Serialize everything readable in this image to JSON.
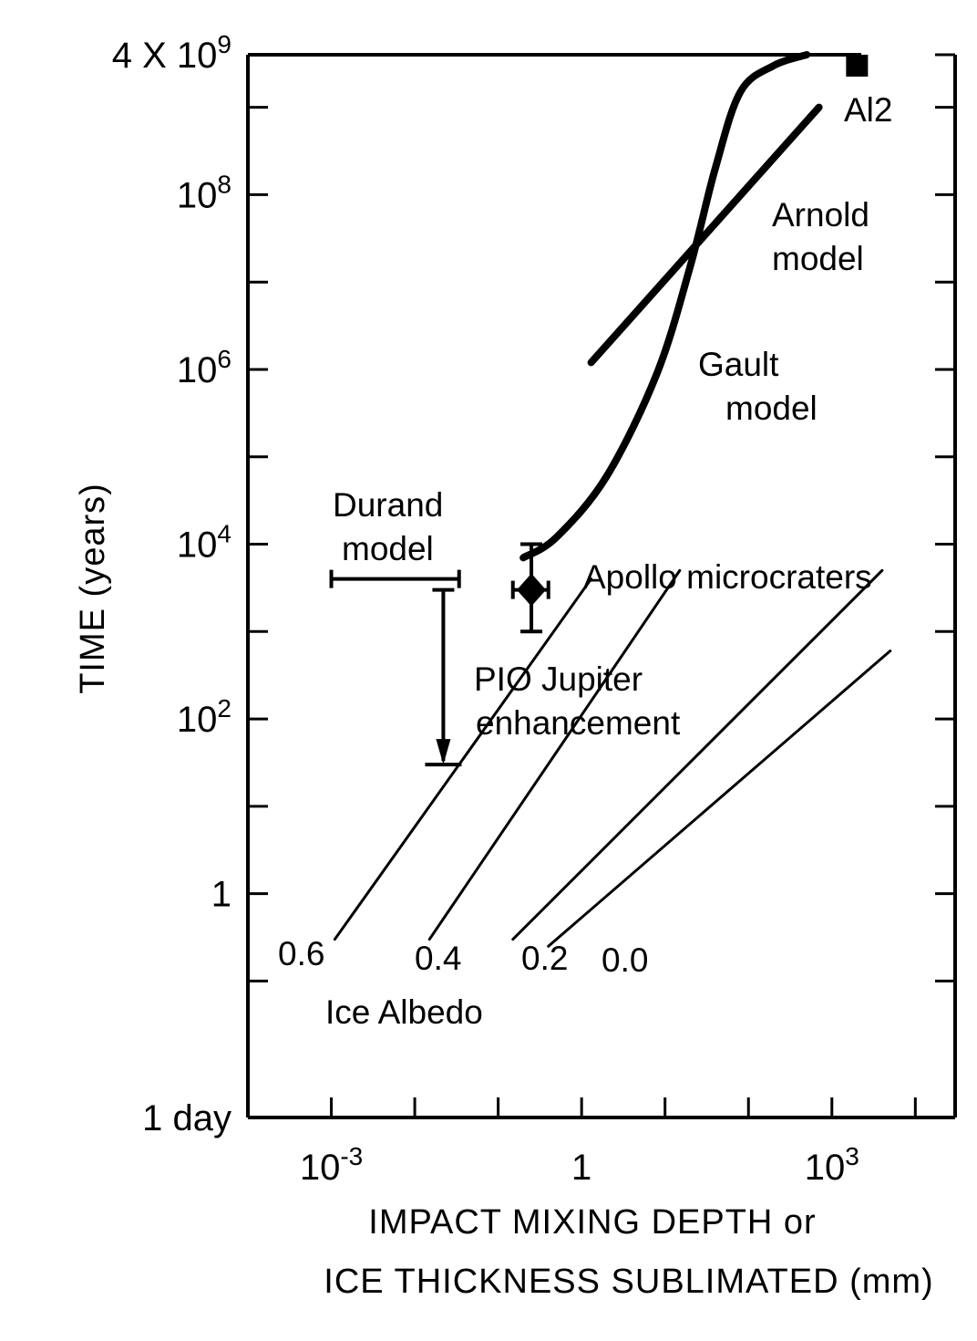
{
  "chart_data": {
    "type": "line",
    "xlabel": [
      "IMPACT MIXING DEPTH or",
      "ICE THICKNESS SUBLIMATED (mm)"
    ],
    "ylabel": "TIME (years)",
    "x_scale": "log",
    "y_scale": "log",
    "xlim": [
      0.0001,
      30000.0
    ],
    "ylim": [
      0.00274,
      4000000000.0
    ],
    "grid": false,
    "x_ticks_major": [
      {
        "value": 0.001,
        "label": "10⁻³"
      },
      {
        "value": 1,
        "label": "1"
      },
      {
        "value": 1000,
        "label": "10³"
      }
    ],
    "x_ticks_minor": [
      0.01,
      0.1,
      10,
      100,
      10000
    ],
    "y_ticks_major": [
      {
        "value": 0.00274,
        "label": "1 day"
      },
      {
        "value": 1,
        "label": "1"
      },
      {
        "value": 100,
        "label": "10²"
      },
      {
        "value": 10000,
        "label": "10⁴"
      },
      {
        "value": 1000000,
        "label": "10⁶"
      },
      {
        "value": 100000000,
        "label": "10⁸"
      },
      {
        "value": 4000000000,
        "label": "4 X 10⁹"
      }
    ],
    "y_ticks_minor": [
      0.1,
      10,
      1000,
      100000,
      10000000,
      1000000000
    ],
    "series": [
      {
        "name": "Gault model",
        "style": "thick",
        "x": [
          0.2,
          0.5,
          2,
          8,
          20,
          40,
          80,
          200,
          500
        ],
        "y": [
          7000,
          12000,
          60000,
          900000,
          15000000,
          200000000,
          1500000000,
          3000000000,
          4000000000
        ]
      },
      {
        "name": "Arnold model",
        "style": "thick",
        "x": [
          1.3,
          700
        ],
        "y": [
          1200000,
          1000000000
        ]
      },
      {
        "name": "0.6",
        "style": "thin",
        "x": [
          0.0011,
          1.3
        ],
        "y": [
          0.3,
          4000
        ]
      },
      {
        "name": "0.4",
        "style": "thin",
        "x": [
          0.015,
          15
        ],
        "y": [
          0.3,
          5000
        ]
      },
      {
        "name": "0.2",
        "style": "thin",
        "x": [
          0.15,
          4000
        ],
        "y": [
          0.3,
          5000
        ]
      },
      {
        "name": "0.0",
        "style": "thin",
        "x": [
          0.4,
          5000
        ],
        "y": [
          0.25,
          600
        ]
      }
    ],
    "points": [
      {
        "name": "Apollo microcraters",
        "x": 0.25,
        "y": 3000,
        "x_err": [
          0.15,
          0.4
        ],
        "y_err": [
          1000,
          10000
        ],
        "marker": "diamond"
      },
      {
        "name": "Al2",
        "x": 2000,
        "y": 3000000000,
        "marker": "square"
      }
    ],
    "ranges": [
      {
        "name": "Durand model",
        "x": [
          0.001,
          0.034
        ],
        "y": 4000
      }
    ],
    "arrows": [
      {
        "name": "PIO Jupiter enhancement",
        "x": 0.022,
        "y_from": 3000,
        "y_to": 30
      }
    ],
    "annotations": {
      "al2": "Al2",
      "arnold": [
        "Arnold",
        "model"
      ],
      "gault": [
        "Gault",
        "model"
      ],
      "durand": [
        "Durand",
        "model"
      ],
      "apollo": "Apollo microcraters",
      "pio": [
        "PIO Jupiter",
        "enhancement"
      ],
      "albedo_title": "Ice Albedo"
    }
  }
}
